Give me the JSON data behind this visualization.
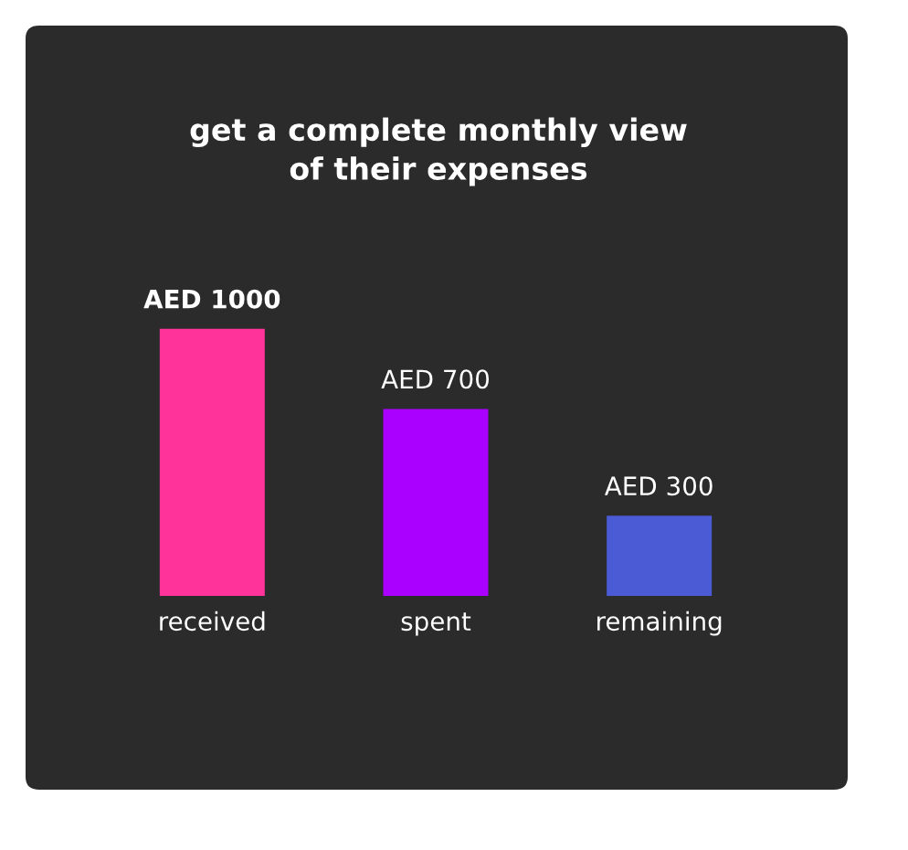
{
  "chart_data": {
    "type": "bar",
    "title": "get a complete monthly view\nof their expenses",
    "categories": [
      "received",
      "spent",
      "remaining"
    ],
    "values": [
      1000,
      700,
      300
    ],
    "colors": [
      "#ff3399",
      "#aa00ff",
      "#4b5bd6"
    ],
    "value_labels": [
      "AED 1000",
      "AED 700",
      "AED 300"
    ],
    "grid": false,
    "legend": false
  }
}
